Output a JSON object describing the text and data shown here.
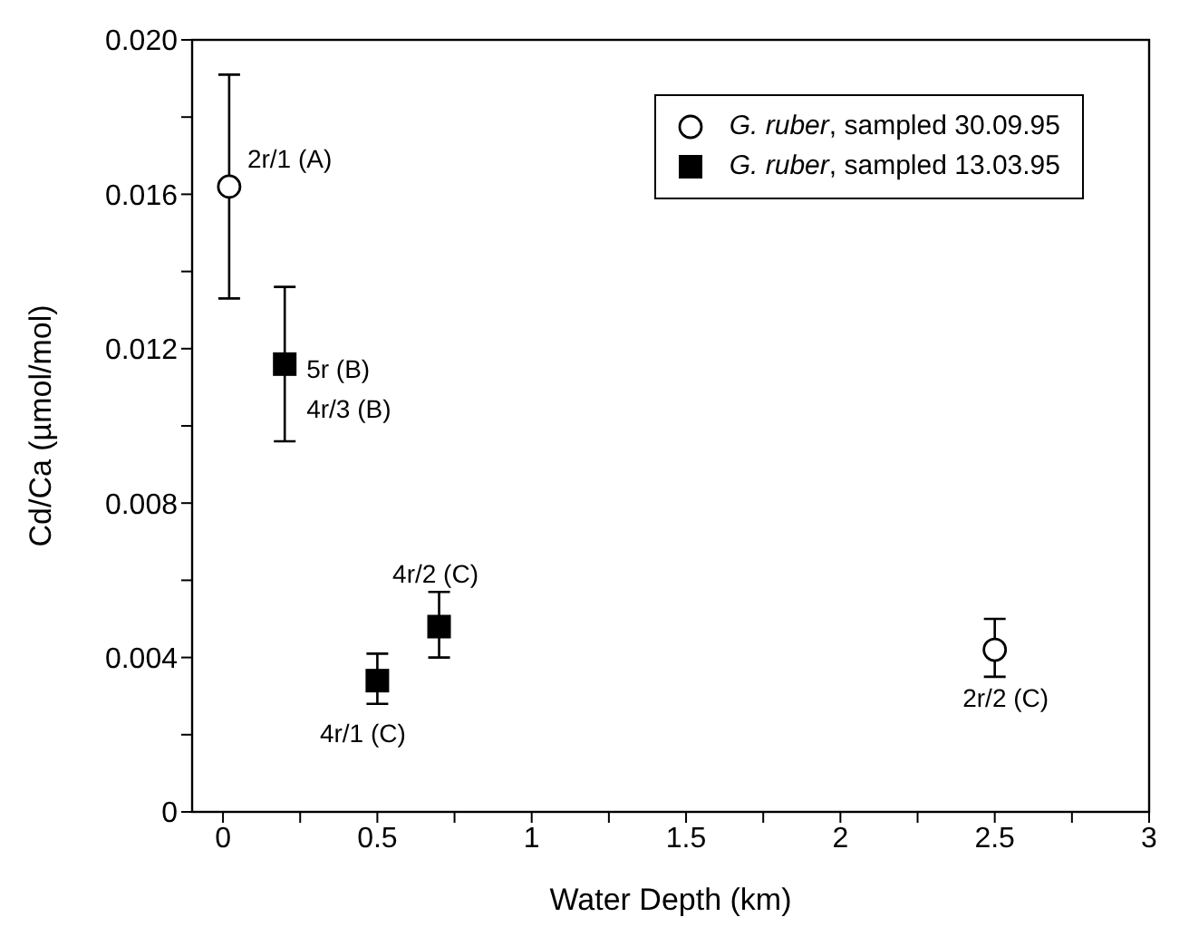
{
  "chart_data": {
    "type": "scatter",
    "xlabel": "Water Depth (km)",
    "ylabel": "Cd/Ca (µmol/mol)",
    "xlim": [
      -0.1,
      3
    ],
    "ylim": [
      0,
      0.02
    ],
    "xticks": [
      0,
      {
        "value": 0.25,
        "label": null
      },
      0.5,
      {
        "value": 0.75,
        "label": null
      },
      1,
      {
        "value": 1.25,
        "label": null
      },
      1.5,
      {
        "value": 1.75,
        "label": null
      },
      2,
      {
        "value": 2.25,
        "label": null
      },
      2.5,
      {
        "value": 2.75,
        "label": null
      },
      3
    ],
    "yticks": [
      {
        "value": 0,
        "label": "0"
      },
      {
        "value": 0.002,
        "label": null
      },
      0.004,
      {
        "value": 0.006,
        "label": null
      },
      0.008,
      {
        "value": 0.01,
        "label": null
      },
      0.012,
      {
        "value": 0.014,
        "label": null
      },
      0.016,
      {
        "value": 0.018,
        "label": null
      },
      {
        "value": 0.02,
        "label": "0.020"
      }
    ],
    "legend": "top right",
    "grid": false,
    "series": [
      {
        "name": "G. ruber, sampled 30.09.95",
        "color": "#000000",
        "marker": "circle",
        "x": [
          0.02,
          2.5
        ],
        "values": [
          0.0162,
          0.0042
        ],
        "errors": [
          [
            0.0133,
            0.0191
          ],
          [
            0.0035,
            0.005
          ]
        ]
      },
      {
        "name": "G. ruber, sampled 13.03.95",
        "color": "#000000",
        "marker": "square",
        "x": [
          0.2,
          0.5,
          0.7
        ],
        "values": [
          0.0116,
          0.0034,
          0.0048
        ],
        "errors": [
          [
            0.0096,
            0.0136
          ],
          [
            0.0028,
            0.0041
          ],
          [
            0.004,
            0.0057
          ]
        ]
      }
    ],
    "annotations": [
      {
        "text": "2r/1 (A)",
        "x": 0.02,
        "y": 0.0162
      },
      {
        "text": "5r (B)",
        "x": 0.2,
        "y": 0.0116
      },
      {
        "text": "4r/3 (B)",
        "x": 0.2,
        "y": 0.0116
      },
      {
        "text": "4r/2 (C)",
        "x": 0.7,
        "y": 0.0048
      },
      {
        "text": "4r/1 (C)",
        "x": 0.5,
        "y": 0.0034
      },
      {
        "text": "2r/2 (C)",
        "x": 2.5,
        "y": 0.0042
      }
    ]
  }
}
